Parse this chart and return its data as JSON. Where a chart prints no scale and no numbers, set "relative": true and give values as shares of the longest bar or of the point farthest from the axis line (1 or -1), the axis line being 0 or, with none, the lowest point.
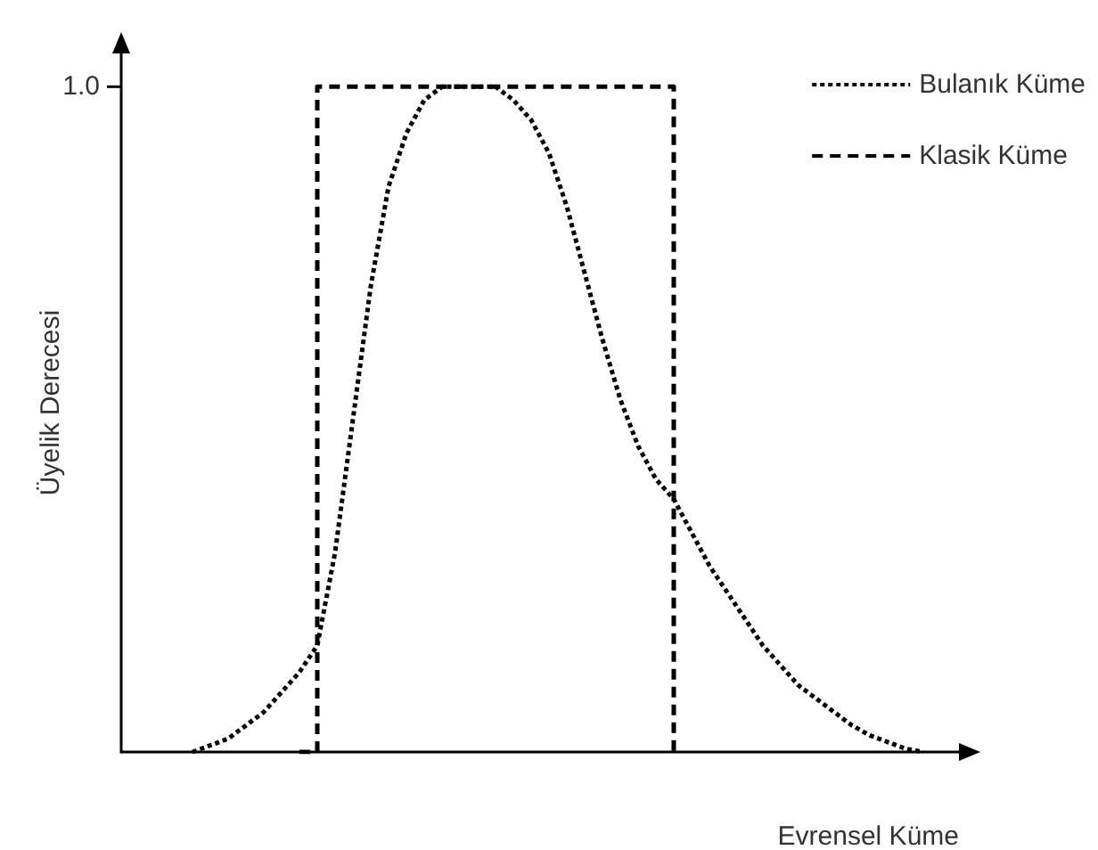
{
  "chart_data": {
    "type": "line",
    "relative": true,
    "xlabel": "Evrensel Küme",
    "ylabel": "Üyelik Derecesi",
    "legend": "top right",
    "marker": "none",
    "grid": false,
    "annotations": [
      "1.0"
    ],
    "categories": [
      null,
      null,
      null,
      null,
      null,
      null,
      null,
      null,
      null,
      null,
      null,
      null,
      null,
      null,
      null,
      null,
      null,
      null,
      null,
      null,
      null,
      null,
      null,
      null,
      null,
      null,
      null,
      null,
      null,
      null,
      null,
      null,
      null,
      null,
      null,
      null,
      null,
      null,
      null,
      null,
      null,
      null,
      null,
      null,
      null,
      null,
      null,
      null
    ],
    "series": [
      {
        "name": "Bulanık Küme",
        "color": "#000000",
        "line_style": "dotted",
        "values": [
          null,
          null,
          null,
          null,
          0.0,
          0.01,
          0.02,
          0.04,
          0.06,
          0.09,
          0.12,
          0.16,
          0.3,
          0.5,
          0.7,
          0.85,
          0.93,
          0.98,
          1.0,
          1.0,
          1.0,
          1.0,
          0.98,
          0.95,
          0.9,
          0.82,
          0.72,
          0.62,
          0.53,
          0.46,
          0.41,
          0.38,
          0.33,
          0.28,
          0.24,
          0.2,
          0.16,
          0.13,
          0.1,
          0.08,
          0.06,
          0.04,
          0.025,
          0.015,
          0.005,
          0.0,
          null,
          null
        ]
      },
      {
        "name": "Klasik Küme",
        "type": "step",
        "color": "#000000",
        "line_style": "dashed",
        "values": [
          null,
          null,
          null,
          null,
          null,
          null,
          null,
          null,
          null,
          null,
          0,
          1,
          1,
          1,
          1,
          1,
          1,
          1,
          1,
          1,
          1,
          1,
          1,
          1,
          1,
          1,
          1,
          1,
          1,
          1,
          1,
          0,
          null,
          null,
          null,
          null,
          null,
          null,
          null,
          null,
          null,
          null,
          null,
          null,
          null,
          null,
          null,
          null
        ]
      }
    ]
  }
}
